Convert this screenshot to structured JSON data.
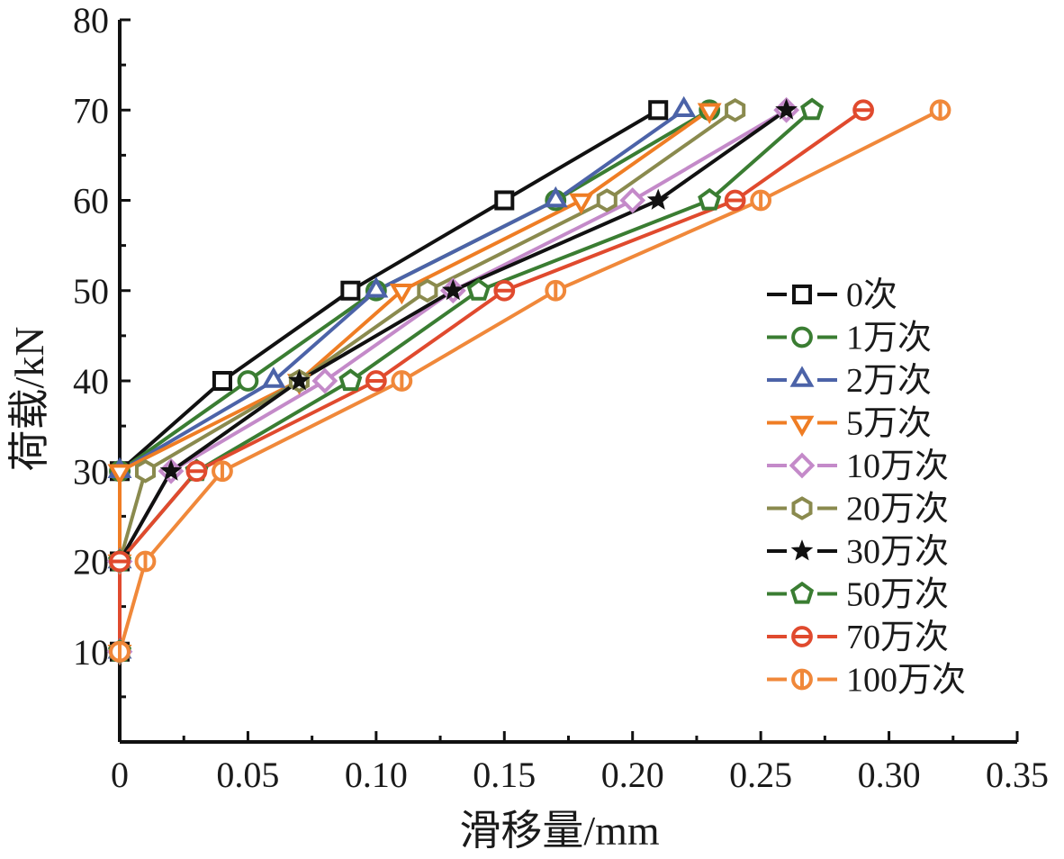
{
  "chart_data": {
    "type": "line",
    "title": "",
    "xlabel": "滑移量/mm",
    "ylabel": "荷载/kN",
    "xlim": [
      0,
      0.35
    ],
    "ylim": [
      0,
      80
    ],
    "x_ticks": [
      "0",
      "0.05",
      "0.10",
      "0.15",
      "0.20",
      "0.25",
      "0.30",
      "0.35"
    ],
    "y_ticks": [
      "10",
      "20",
      "30",
      "40",
      "50",
      "60",
      "70",
      "80"
    ],
    "grid": false,
    "legend_position": "right",
    "series": [
      {
        "name": "0次",
        "marker": "square",
        "color": "#111111",
        "points": [
          [
            0,
            10
          ],
          [
            0,
            20
          ],
          [
            0,
            30
          ],
          [
            0.04,
            40
          ],
          [
            0.09,
            50
          ],
          [
            0.15,
            60
          ],
          [
            0.21,
            70
          ]
        ]
      },
      {
        "name": "1万次",
        "marker": "circle",
        "color": "#3a7d32",
        "points": [
          [
            0,
            10
          ],
          [
            0,
            20
          ],
          [
            0,
            30
          ],
          [
            0.05,
            40
          ],
          [
            0.1,
            50
          ],
          [
            0.17,
            60
          ],
          [
            0.23,
            70
          ]
        ]
      },
      {
        "name": "2万次",
        "marker": "triangle-up",
        "color": "#4c63a8",
        "points": [
          [
            0,
            10
          ],
          [
            0,
            20
          ],
          [
            0,
            30
          ],
          [
            0.06,
            40
          ],
          [
            0.1,
            50
          ],
          [
            0.17,
            60
          ],
          [
            0.22,
            70
          ]
        ]
      },
      {
        "name": "5万次",
        "marker": "triangle-down",
        "color": "#ef7d24",
        "points": [
          [
            0,
            10
          ],
          [
            0,
            20
          ],
          [
            0,
            30
          ],
          [
            0.07,
            40
          ],
          [
            0.11,
            50
          ],
          [
            0.18,
            60
          ],
          [
            0.23,
            70
          ]
        ]
      },
      {
        "name": "10万次",
        "marker": "diamond",
        "color": "#c48ac9",
        "points": [
          [
            0,
            10
          ],
          [
            0,
            20
          ],
          [
            0.02,
            30
          ],
          [
            0.08,
            40
          ],
          [
            0.13,
            50
          ],
          [
            0.2,
            60
          ],
          [
            0.26,
            70
          ]
        ]
      },
      {
        "name": "20万次",
        "marker": "hexagon",
        "color": "#8a8a4e",
        "points": [
          [
            0,
            10
          ],
          [
            0,
            20
          ],
          [
            0.01,
            30
          ],
          [
            0.07,
            40
          ],
          [
            0.12,
            50
          ],
          [
            0.19,
            60
          ],
          [
            0.24,
            70
          ]
        ]
      },
      {
        "name": "30万次",
        "marker": "star",
        "color": "#111111",
        "points": [
          [
            0,
            10
          ],
          [
            0,
            20
          ],
          [
            0.02,
            30
          ],
          [
            0.07,
            40
          ],
          [
            0.13,
            50
          ],
          [
            0.21,
            60
          ],
          [
            0.26,
            70
          ]
        ]
      },
      {
        "name": "50万次",
        "marker": "pentagon",
        "color": "#3a7d32",
        "points": [
          [
            0,
            10
          ],
          [
            0,
            20
          ],
          [
            0.03,
            30
          ],
          [
            0.09,
            40
          ],
          [
            0.14,
            50
          ],
          [
            0.23,
            60
          ],
          [
            0.27,
            70
          ]
        ]
      },
      {
        "name": "70万次",
        "marker": "circle-hline",
        "color": "#e04a2e",
        "points": [
          [
            0,
            10
          ],
          [
            0,
            20
          ],
          [
            0.03,
            30
          ],
          [
            0.1,
            40
          ],
          [
            0.15,
            50
          ],
          [
            0.24,
            60
          ],
          [
            0.29,
            70
          ]
        ]
      },
      {
        "name": "100万次",
        "marker": "circle-vline",
        "color": "#f0883a",
        "points": [
          [
            0,
            10
          ],
          [
            0.01,
            20
          ],
          [
            0.04,
            30
          ],
          [
            0.11,
            40
          ],
          [
            0.17,
            50
          ],
          [
            0.25,
            60
          ],
          [
            0.32,
            70
          ]
        ]
      }
    ]
  }
}
